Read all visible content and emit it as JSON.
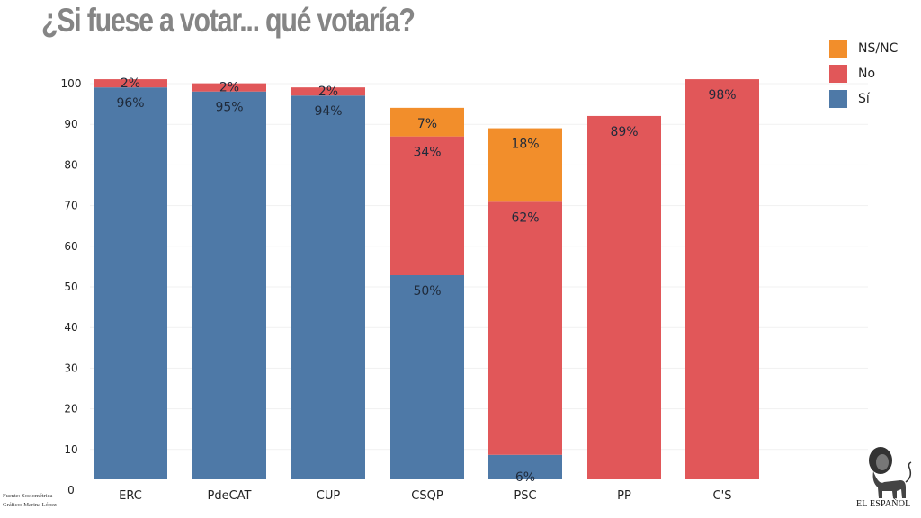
{
  "title": "¿Si fuese a votar... qué votaría?",
  "legend": [
    {
      "name": "NS/NC",
      "color": "#F28E2B"
    },
    {
      "name": "No",
      "color": "#E15759"
    },
    {
      "name": "Sí",
      "color": "#4E79A7"
    }
  ],
  "source": {
    "line1": "Fuente: Sociométrica",
    "line2": "Gráfico: Marina López"
  },
  "logo": {
    "text": "EL ESPAÑOL",
    "icon": "lion-icon"
  },
  "chart_data": {
    "type": "bar",
    "stacked": true,
    "title": "¿Si fuese a votar... qué votaría?",
    "xlabel": "",
    "ylabel": "",
    "ylim": [
      0,
      100
    ],
    "yticks": [
      "0",
      "10",
      "20",
      "30",
      "40",
      "50",
      "60",
      "70",
      "80",
      "90",
      "100"
    ],
    "grid": true,
    "legend_position": "top-right",
    "categories": [
      "ERC",
      "PdeCAT",
      "CUP",
      "CSQP",
      "PSC",
      "PP",
      "C'S"
    ],
    "series": [
      {
        "name": "Sí",
        "color": "#4E79A7",
        "values": [
          96,
          95,
          94,
          50,
          6,
          0,
          0
        ],
        "labels": [
          "96%",
          "95%",
          "94%",
          "50%",
          "6%",
          "",
          ""
        ]
      },
      {
        "name": "No",
        "color": "#E15759",
        "values": [
          2,
          2,
          2,
          34,
          62,
          89,
          98
        ],
        "labels": [
          "2%",
          "2%",
          "2%",
          "34%",
          "62%",
          "89%",
          "98%"
        ]
      },
      {
        "name": "NS/NC",
        "color": "#F28E2B",
        "values": [
          0,
          0,
          0,
          7,
          18,
          0,
          0
        ],
        "labels": [
          "",
          "",
          "",
          "7%",
          "18%",
          "",
          ""
        ]
      }
    ]
  }
}
